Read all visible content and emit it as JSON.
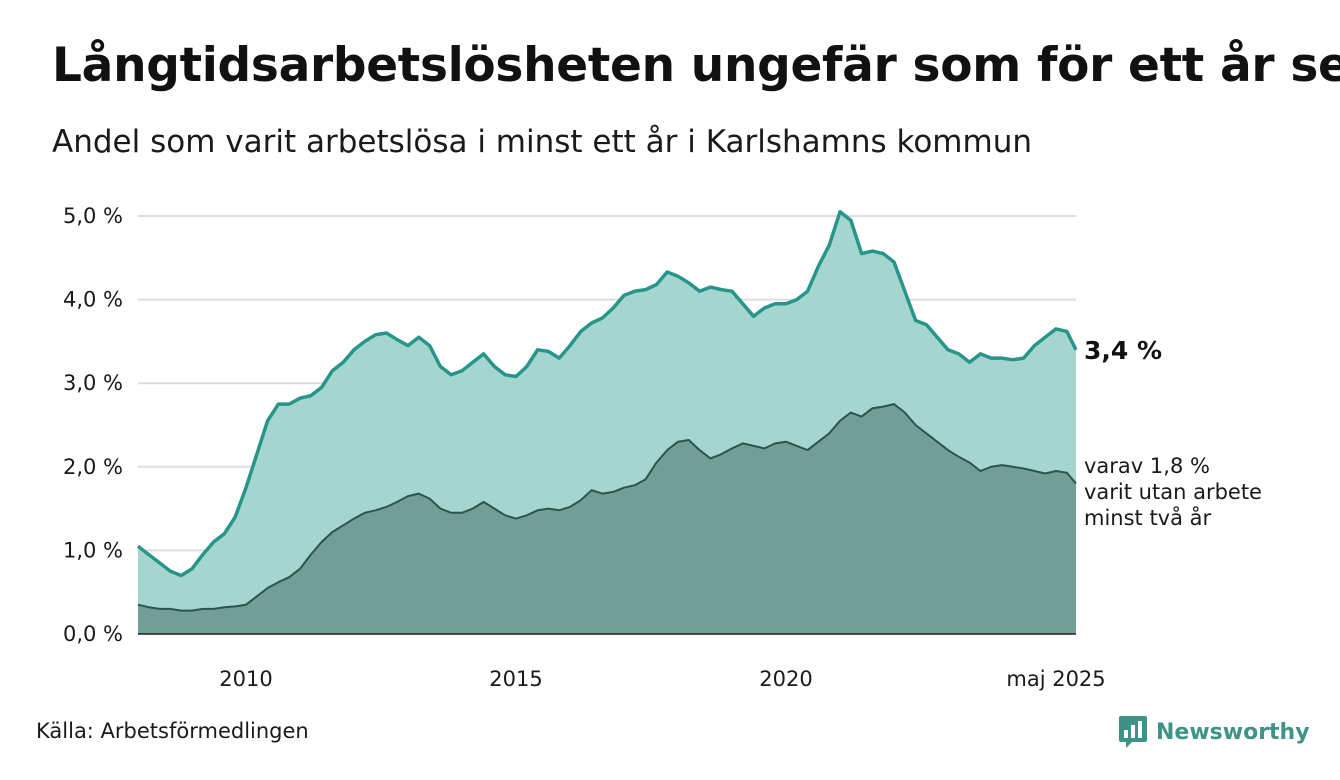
{
  "title": "Långtidsarbetslösheten ungefär som för ett år sen",
  "subtitle": "Andel som varit arbetslösa i minst ett år i Karlshamns kommun",
  "source": "Källa: Arbetsförmedlingen",
  "brand": "Newsworthy",
  "colors": {
    "upper_fill": "#a5d5cf",
    "upper_line": "#27958a",
    "lower_fill": "#719f97",
    "lower_line": "#2d544e",
    "grid": "#dddddd",
    "brand": "#3e9287"
  },
  "chart_data": {
    "type": "area",
    "x_unit": "year",
    "xlim": [
      2008.0,
      2025.37
    ],
    "ylim": [
      0,
      5.0
    ],
    "y_ticks": [
      {
        "value": 0,
        "label": "0,0 %"
      },
      {
        "value": 1,
        "label": "1,0 %"
      },
      {
        "value": 2,
        "label": "2,0 %"
      },
      {
        "value": 3,
        "label": "3,0 %"
      },
      {
        "value": 4,
        "label": "4,0 %"
      },
      {
        "value": 5,
        "label": "5,0 %"
      }
    ],
    "x_ticks": [
      {
        "value": 2010,
        "label": "2010"
      },
      {
        "value": 2015,
        "label": "2015"
      },
      {
        "value": 2020,
        "label": "2020"
      },
      {
        "value": 2025,
        "label": "maj 2025"
      }
    ],
    "grid": true,
    "series": [
      {
        "key": "total",
        "end_label": "3,4 %",
        "points": [
          [
            2008.0,
            1.05
          ],
          [
            2008.2,
            0.95
          ],
          [
            2008.4,
            0.85
          ],
          [
            2008.6,
            0.75
          ],
          [
            2008.8,
            0.7
          ],
          [
            2009.0,
            0.78
          ],
          [
            2009.2,
            0.95
          ],
          [
            2009.4,
            1.1
          ],
          [
            2009.6,
            1.2
          ],
          [
            2009.8,
            1.4
          ],
          [
            2010.0,
            1.75
          ],
          [
            2010.2,
            2.15
          ],
          [
            2010.4,
            2.55
          ],
          [
            2010.6,
            2.75
          ],
          [
            2010.8,
            2.75
          ],
          [
            2011.0,
            2.82
          ],
          [
            2011.2,
            2.85
          ],
          [
            2011.4,
            2.95
          ],
          [
            2011.6,
            3.15
          ],
          [
            2011.8,
            3.25
          ],
          [
            2012.0,
            3.4
          ],
          [
            2012.2,
            3.5
          ],
          [
            2012.4,
            3.58
          ],
          [
            2012.6,
            3.6
          ],
          [
            2012.8,
            3.52
          ],
          [
            2013.0,
            3.45
          ],
          [
            2013.2,
            3.55
          ],
          [
            2013.4,
            3.45
          ],
          [
            2013.6,
            3.2
          ],
          [
            2013.8,
            3.1
          ],
          [
            2014.0,
            3.15
          ],
          [
            2014.2,
            3.25
          ],
          [
            2014.4,
            3.35
          ],
          [
            2014.6,
            3.2
          ],
          [
            2014.8,
            3.1
          ],
          [
            2015.0,
            3.08
          ],
          [
            2015.2,
            3.2
          ],
          [
            2015.4,
            3.4
          ],
          [
            2015.6,
            3.38
          ],
          [
            2015.8,
            3.3
          ],
          [
            2016.0,
            3.45
          ],
          [
            2016.2,
            3.62
          ],
          [
            2016.4,
            3.72
          ],
          [
            2016.6,
            3.78
          ],
          [
            2016.8,
            3.9
          ],
          [
            2017.0,
            4.05
          ],
          [
            2017.2,
            4.1
          ],
          [
            2017.4,
            4.12
          ],
          [
            2017.6,
            4.18
          ],
          [
            2017.8,
            4.33
          ],
          [
            2018.0,
            4.28
          ],
          [
            2018.2,
            4.2
          ],
          [
            2018.4,
            4.1
          ],
          [
            2018.6,
            4.15
          ],
          [
            2018.8,
            4.12
          ],
          [
            2019.0,
            4.1
          ],
          [
            2019.2,
            3.95
          ],
          [
            2019.4,
            3.8
          ],
          [
            2019.6,
            3.9
          ],
          [
            2019.8,
            3.95
          ],
          [
            2020.0,
            3.95
          ],
          [
            2020.2,
            4.0
          ],
          [
            2020.4,
            4.1
          ],
          [
            2020.6,
            4.4
          ],
          [
            2020.8,
            4.65
          ],
          [
            2021.0,
            5.05
          ],
          [
            2021.2,
            4.95
          ],
          [
            2021.4,
            4.55
          ],
          [
            2021.6,
            4.58
          ],
          [
            2021.8,
            4.55
          ],
          [
            2022.0,
            4.45
          ],
          [
            2022.2,
            4.1
          ],
          [
            2022.4,
            3.75
          ],
          [
            2022.6,
            3.7
          ],
          [
            2022.8,
            3.55
          ],
          [
            2023.0,
            3.4
          ],
          [
            2023.2,
            3.35
          ],
          [
            2023.4,
            3.25
          ],
          [
            2023.6,
            3.35
          ],
          [
            2023.8,
            3.3
          ],
          [
            2024.0,
            3.3
          ],
          [
            2024.2,
            3.28
          ],
          [
            2024.4,
            3.3
          ],
          [
            2024.6,
            3.45
          ],
          [
            2024.8,
            3.55
          ],
          [
            2025.0,
            3.65
          ],
          [
            2025.2,
            3.62
          ],
          [
            2025.37,
            3.4
          ]
        ]
      },
      {
        "key": "long",
        "end_label_lines": [
          "varav 1,8 %",
          "varit utan arbete",
          "minst två år"
        ],
        "points": [
          [
            2008.0,
            0.35
          ],
          [
            2008.2,
            0.32
          ],
          [
            2008.4,
            0.3
          ],
          [
            2008.6,
            0.3
          ],
          [
            2008.8,
            0.28
          ],
          [
            2009.0,
            0.28
          ],
          [
            2009.2,
            0.3
          ],
          [
            2009.4,
            0.3
          ],
          [
            2009.6,
            0.32
          ],
          [
            2009.8,
            0.33
          ],
          [
            2010.0,
            0.35
          ],
          [
            2010.2,
            0.45
          ],
          [
            2010.4,
            0.55
          ],
          [
            2010.6,
            0.62
          ],
          [
            2010.8,
            0.68
          ],
          [
            2011.0,
            0.78
          ],
          [
            2011.2,
            0.95
          ],
          [
            2011.4,
            1.1
          ],
          [
            2011.6,
            1.22
          ],
          [
            2011.8,
            1.3
          ],
          [
            2012.0,
            1.38
          ],
          [
            2012.2,
            1.45
          ],
          [
            2012.4,
            1.48
          ],
          [
            2012.6,
            1.52
          ],
          [
            2012.8,
            1.58
          ],
          [
            2013.0,
            1.65
          ],
          [
            2013.2,
            1.68
          ],
          [
            2013.4,
            1.62
          ],
          [
            2013.6,
            1.5
          ],
          [
            2013.8,
            1.45
          ],
          [
            2014.0,
            1.45
          ],
          [
            2014.2,
            1.5
          ],
          [
            2014.4,
            1.58
          ],
          [
            2014.6,
            1.5
          ],
          [
            2014.8,
            1.42
          ],
          [
            2015.0,
            1.38
          ],
          [
            2015.2,
            1.42
          ],
          [
            2015.4,
            1.48
          ],
          [
            2015.6,
            1.5
          ],
          [
            2015.8,
            1.48
          ],
          [
            2016.0,
            1.52
          ],
          [
            2016.2,
            1.6
          ],
          [
            2016.4,
            1.72
          ],
          [
            2016.6,
            1.68
          ],
          [
            2016.8,
            1.7
          ],
          [
            2017.0,
            1.75
          ],
          [
            2017.2,
            1.78
          ],
          [
            2017.4,
            1.85
          ],
          [
            2017.6,
            2.05
          ],
          [
            2017.8,
            2.2
          ],
          [
            2018.0,
            2.3
          ],
          [
            2018.2,
            2.32
          ],
          [
            2018.4,
            2.2
          ],
          [
            2018.6,
            2.1
          ],
          [
            2018.8,
            2.15
          ],
          [
            2019.0,
            2.22
          ],
          [
            2019.2,
            2.28
          ],
          [
            2019.4,
            2.25
          ],
          [
            2019.6,
            2.22
          ],
          [
            2019.8,
            2.28
          ],
          [
            2020.0,
            2.3
          ],
          [
            2020.2,
            2.25
          ],
          [
            2020.4,
            2.2
          ],
          [
            2020.6,
            2.3
          ],
          [
            2020.8,
            2.4
          ],
          [
            2021.0,
            2.55
          ],
          [
            2021.2,
            2.65
          ],
          [
            2021.4,
            2.6
          ],
          [
            2021.6,
            2.7
          ],
          [
            2021.8,
            2.72
          ],
          [
            2022.0,
            2.75
          ],
          [
            2022.2,
            2.65
          ],
          [
            2022.4,
            2.5
          ],
          [
            2022.6,
            2.4
          ],
          [
            2022.8,
            2.3
          ],
          [
            2023.0,
            2.2
          ],
          [
            2023.2,
            2.12
          ],
          [
            2023.4,
            2.05
          ],
          [
            2023.6,
            1.95
          ],
          [
            2023.8,
            2.0
          ],
          [
            2024.0,
            2.02
          ],
          [
            2024.2,
            2.0
          ],
          [
            2024.4,
            1.98
          ],
          [
            2024.6,
            1.95
          ],
          [
            2024.8,
            1.92
          ],
          [
            2025.0,
            1.95
          ],
          [
            2025.2,
            1.93
          ],
          [
            2025.37,
            1.8
          ]
        ]
      }
    ]
  }
}
